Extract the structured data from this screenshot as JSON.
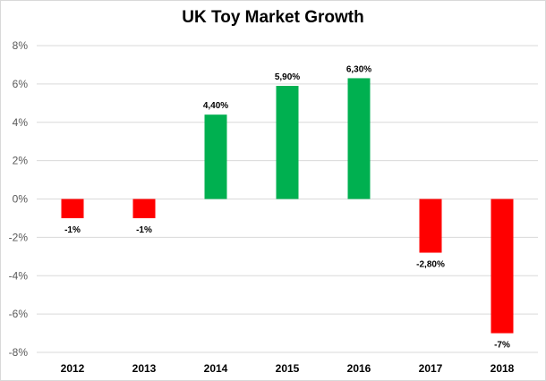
{
  "chart_data": {
    "type": "bar",
    "title": "UK Toy Market Growth",
    "xlabel": "",
    "ylabel": "",
    "categories": [
      "2012",
      "2013",
      "2014",
      "2015",
      "2016",
      "2017",
      "2018"
    ],
    "values": [
      -1,
      -1,
      4.4,
      5.9,
      6.3,
      -2.8,
      -7
    ],
    "data_labels": [
      "-1%",
      "-1%",
      "4,40%",
      "5,90%",
      "6,30%",
      "-2,80%",
      "-7%"
    ],
    "ylim": [
      -8,
      8
    ],
    "yticks": [
      8,
      6,
      4,
      2,
      0,
      -2,
      -4,
      -6,
      -8
    ],
    "ytick_labels": [
      "8%",
      "6%",
      "4%",
      "2%",
      "0%",
      "-2%",
      "-4%",
      "-6%",
      "-8%"
    ],
    "grid": true,
    "legend": "none",
    "colors": {
      "positive": "#00b050",
      "negative": "#ff0000",
      "grid": "#d9d9d9",
      "axis_text": "#595959"
    }
  }
}
